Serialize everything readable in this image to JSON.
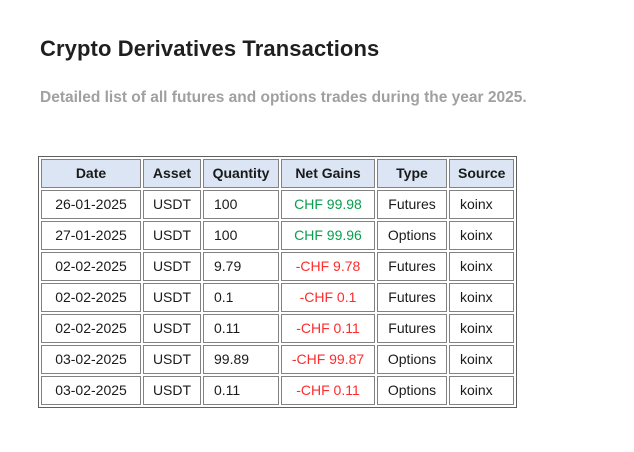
{
  "page": {
    "title": "Crypto Derivatives Transactions",
    "subtitle": "Detailed list of all futures and options trades during the year 2025."
  },
  "table": {
    "columns": [
      "Date",
      "Asset",
      "Quantity",
      "Net Gains",
      "Type",
      "Source"
    ],
    "rows": [
      {
        "date": "26-01-2025",
        "asset": "USDT",
        "quantity": "100",
        "net_gains": "CHF 99.98",
        "type": "Futures",
        "source": "koinx"
      },
      {
        "date": "27-01-2025",
        "asset": "USDT",
        "quantity": "100",
        "net_gains": "CHF 99.96",
        "type": "Options",
        "source": "koinx"
      },
      {
        "date": "02-02-2025",
        "asset": "USDT",
        "quantity": "9.79",
        "net_gains": "-CHF 9.78",
        "type": "Futures",
        "source": "koinx"
      },
      {
        "date": "02-02-2025",
        "asset": "USDT",
        "quantity": "0.1",
        "net_gains": "-CHF 0.1",
        "type": "Futures",
        "source": "koinx"
      },
      {
        "date": "02-02-2025",
        "asset": "USDT",
        "quantity": "0.11",
        "net_gains": "-CHF 0.11",
        "type": "Futures",
        "source": "koinx"
      },
      {
        "date": "03-02-2025",
        "asset": "USDT",
        "quantity": "99.89",
        "net_gains": "-CHF 99.87",
        "type": "Options",
        "source": "koinx"
      },
      {
        "date": "03-02-2025",
        "asset": "USDT",
        "quantity": "0.11",
        "net_gains": "-CHF 0.11",
        "type": "Options",
        "source": "koinx"
      }
    ],
    "colors": {
      "positive_gain": "#089e4e",
      "negative_gain": "#fb2d2d",
      "header_background": "#dbe5f3",
      "cell_border": "#828282"
    }
  }
}
